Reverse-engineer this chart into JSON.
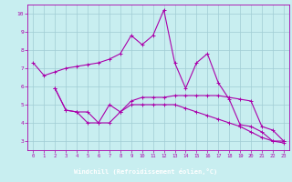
{
  "xlabel": "Windchill (Refroidissement éolien,°C)",
  "xlim": [
    -0.5,
    23.5
  ],
  "ylim": [
    2.5,
    10.5
  ],
  "yticks": [
    3,
    4,
    5,
    6,
    7,
    8,
    9,
    10
  ],
  "xticks": [
    0,
    1,
    2,
    3,
    4,
    5,
    6,
    7,
    8,
    9,
    10,
    11,
    12,
    13,
    14,
    15,
    16,
    17,
    18,
    19,
    20,
    21,
    22,
    23
  ],
  "bg_color": "#c8eef0",
  "line_color": "#aa00aa",
  "grid_color": "#a0ccd4",
  "xlabel_bg": "#8800aa",
  "line1_x": [
    0,
    1,
    2,
    3,
    4,
    5,
    6,
    7,
    8,
    9,
    10,
    11,
    12,
    13,
    14,
    15,
    16,
    17,
    18,
    19,
    20,
    21,
    22,
    23
  ],
  "line1_y": [
    7.3,
    6.6,
    6.8,
    7.0,
    7.1,
    7.2,
    7.3,
    7.5,
    7.8,
    8.8,
    8.3,
    8.8,
    10.2,
    7.3,
    5.9,
    7.3,
    7.8,
    6.2,
    5.3,
    3.9,
    3.8,
    3.5,
    3.0,
    3.0
  ],
  "line2_x": [
    2,
    3,
    4,
    5,
    6,
    7,
    8,
    9,
    10,
    11,
    12,
    13,
    14,
    15,
    16,
    17,
    18,
    19,
    20,
    21,
    22,
    23
  ],
  "line2_y": [
    5.9,
    4.7,
    4.6,
    4.6,
    4.0,
    5.0,
    4.6,
    5.2,
    5.4,
    5.4,
    5.4,
    5.5,
    5.5,
    5.5,
    5.5,
    5.5,
    5.4,
    5.3,
    5.2,
    3.8,
    3.6,
    3.0
  ],
  "line3_x": [
    2,
    3,
    4,
    5,
    6,
    7,
    8,
    9,
    10,
    11,
    12,
    13,
    14,
    15,
    16,
    17,
    18,
    19,
    20,
    21,
    22,
    23
  ],
  "line3_y": [
    5.9,
    4.7,
    4.6,
    4.0,
    4.0,
    4.0,
    4.6,
    5.0,
    5.0,
    5.0,
    5.0,
    5.0,
    4.8,
    4.6,
    4.4,
    4.2,
    4.0,
    3.8,
    3.5,
    3.2,
    3.0,
    2.9
  ]
}
